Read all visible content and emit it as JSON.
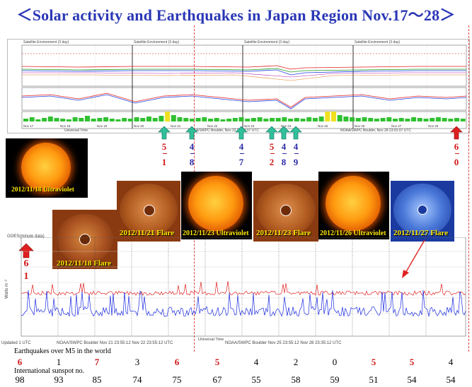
{
  "title": "＜Solar activity and Earthquakes  in Japan Region Nov.17〜28＞",
  "top_chart": {
    "header_text": "Satellite Environment (3 day)",
    "footer_left": "Universal Time",
    "footer_mid": "NOAA/SWPC Boulder, Nov 22 23:59:07 UTC",
    "footer_right": "NOAA/SWPC Boulder, Nov 28 23:01:07 UTC",
    "date_ticks": [
      "Nov 17",
      "Nov 18",
      "Nov 19",
      "Nov 20",
      "Nov 21",
      "Nov 22",
      "Nov 23",
      "Nov 24",
      "Nov 25",
      "Nov 26",
      "Nov 27",
      "Nov 28"
    ]
  },
  "markers": [
    {
      "top": "5",
      "bottom": "1",
      "color_top": "#d01818",
      "color_bottom": "#d01818",
      "arrow": "teal"
    },
    {
      "top": "4",
      "bottom": "8",
      "color_top": "#2a2aa8",
      "color_bottom": "#2a2aa8",
      "arrow": "teal"
    },
    {
      "top": "4",
      "bottom": "7",
      "color_top": "#2a2aa8",
      "color_bottom": "#2a2aa8",
      "arrow": "teal"
    },
    {
      "top": "5",
      "bottom": "2",
      "color_top": "#d01818",
      "color_bottom": "#d01818",
      "arrow": "teal"
    },
    {
      "top": "4",
      "bottom": "8",
      "color_top": "#2a2aa8",
      "color_bottom": "#2a2aa8",
      "arrow": "teal"
    },
    {
      "top": "4",
      "bottom": "9",
      "color_top": "#2a2aa8",
      "color_bottom": "#2a2aa8",
      "arrow": "teal"
    },
    {
      "top": "6",
      "bottom": "0",
      "color_top": "#d01818",
      "color_bottom": "#d01818",
      "arrow": "red"
    }
  ],
  "images": [
    {
      "label": "2012/11/18 Ultraviolet",
      "kind": "sun"
    },
    {
      "label": "2012/11/18 Flare",
      "kind": "corona"
    },
    {
      "label": "2012/11/21 Flare",
      "kind": "corona"
    },
    {
      "label": "2012/11/23 Ultraviolet",
      "kind": "sun"
    },
    {
      "label": "2012/11/23 Flare",
      "kind": "corona"
    },
    {
      "label": "2012/11/26 Ultraviolet",
      "kind": "sun"
    },
    {
      "label": "2012/11/27 Flare",
      "kind": "blue-corona"
    }
  ],
  "left_marker": {
    "top": "6",
    "bottom": "1"
  },
  "bottom_chart": {
    "goes_label": "GOES(minute data)",
    "y_label": "Watts m⁻²",
    "footer_left": "Updated 1 UTC",
    "footer_mid": "NOAA/SWPC Boulder  Nov 21 23:55:12  Nov 22 23:55:12 UTC",
    "footer_right": "NOAA/SWPC Boulder  Nov 25 23:55:12  Nov 28 23:35:12 UTC",
    "universal_time": "Universal Time"
  },
  "earthquakes_label": "Earthquakes over M5 in the world",
  "earthquakes": [
    {
      "v": "6",
      "color": "#d01818"
    },
    {
      "v": "1",
      "color": "#000000"
    },
    {
      "v": "7",
      "color": "#d01818"
    },
    {
      "v": "3",
      "color": "#000000"
    },
    {
      "v": "6",
      "color": "#d01818"
    },
    {
      "v": "5",
      "color": "#d01818"
    },
    {
      "v": "4",
      "color": "#000000"
    },
    {
      "v": "2",
      "color": "#000000"
    },
    {
      "v": "0",
      "color": "#000000"
    },
    {
      "v": "5",
      "color": "#d01818"
    },
    {
      "v": "5",
      "color": "#d01818"
    },
    {
      "v": "4",
      "color": "#000000"
    }
  ],
  "sunspot_label": "International sunspot no.",
  "sunspots": [
    "98",
    "93",
    "85",
    "74",
    "75",
    "67",
    "55",
    "58",
    "59",
    "51",
    "54",
    "54"
  ]
}
